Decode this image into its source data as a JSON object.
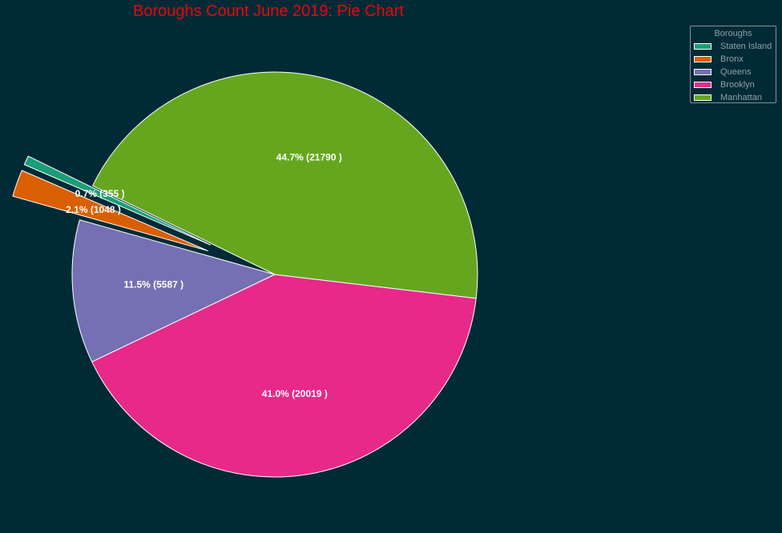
{
  "chart_data": {
    "type": "pie",
    "title": "Boroughs Count June 2019: Pie Chart",
    "start_angle_deg": 154,
    "direction": "counterclockwise",
    "legend": {
      "title": "Boroughs",
      "placement": "top-right"
    },
    "slices": [
      {
        "name": "Staten Island",
        "value": 355,
        "percent": 0.7,
        "label": "0.7% (355 )",
        "color": "#1b9e77",
        "exploded": true
      },
      {
        "name": "Bronx",
        "value": 1048,
        "percent": 2.1,
        "label": "2.1% (1048 )",
        "color": "#d95f02",
        "exploded": true
      },
      {
        "name": "Queens",
        "value": 5587,
        "percent": 11.5,
        "label": "11.5% (5587 )",
        "color": "#7570b3",
        "exploded": false
      },
      {
        "name": "Brooklyn",
        "value": 20019,
        "percent": 41.0,
        "label": "41.0% (20019 )",
        "color": "#e7298a",
        "exploded": false
      },
      {
        "name": "Manhattan",
        "value": 21790,
        "percent": 44.7,
        "label": "44.7% (21790 )",
        "color": "#66a61e",
        "exploded": false
      }
    ]
  }
}
